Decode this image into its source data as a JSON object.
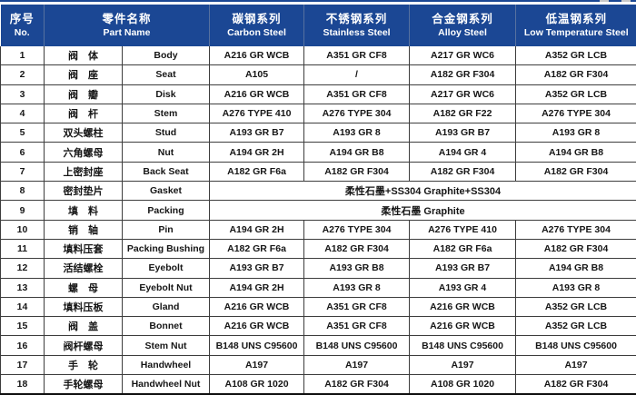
{
  "table": {
    "columns": [
      {
        "zh": "序号",
        "en": "No."
      },
      {
        "zh": "零件名称",
        "en": "Part Name"
      },
      {
        "zh": "碳钢系列",
        "en": "Carbon Steel"
      },
      {
        "zh": "不锈钢系列",
        "en": "Stainless Steel"
      },
      {
        "zh": "合金钢系列",
        "en": "Alloy Steel"
      },
      {
        "zh": "低温钢系列",
        "en": "Low Temperature Steel"
      }
    ],
    "rows": [
      {
        "no": "1",
        "part_zh": "阀　体",
        "part_en": "Body",
        "materials": [
          "A216 GR WCB",
          "A351 GR CF8",
          "A217 GR WC6",
          "A352 GR LCB"
        ]
      },
      {
        "no": "2",
        "part_zh": "阀　座",
        "part_en": "Seat",
        "materials": [
          "A105",
          "/",
          "A182 GR F304",
          "A182 GR F304"
        ]
      },
      {
        "no": "3",
        "part_zh": "阀　瓣",
        "part_en": "Disk",
        "materials": [
          "A216 GR WCB",
          "A351 GR CF8",
          "A217 GR WC6",
          "A352 GR LCB"
        ]
      },
      {
        "no": "4",
        "part_zh": "阀　杆",
        "part_en": "Stem",
        "materials": [
          "A276 TYPE 410",
          "A276 TYPE 304",
          "A182 GR F22",
          "A276 TYPE 304"
        ]
      },
      {
        "no": "5",
        "part_zh": "双头螺柱",
        "part_en": "Stud",
        "materials": [
          "A193 GR B7",
          "A193 GR 8",
          "A193 GR B7",
          "A193 GR 8"
        ]
      },
      {
        "no": "6",
        "part_zh": "六角螺母",
        "part_en": "Nut",
        "materials": [
          "A194 GR 2H",
          "A194 GR B8",
          "A194 GR 4",
          "A194 GR B8"
        ]
      },
      {
        "no": "7",
        "part_zh": "上密封座",
        "part_en": "Back Seat",
        "materials": [
          "A182 GR F6a",
          "A182 GR F304",
          "A182 GR F304",
          "A182 GR F304"
        ]
      },
      {
        "no": "8",
        "part_zh": "密封垫片",
        "part_en": "Gasket",
        "merged": "柔性石墨+SS304 Graphite+SS304"
      },
      {
        "no": "9",
        "part_zh": "填　料",
        "part_en": "Packing",
        "merged": "柔性石墨 Graphite"
      },
      {
        "no": "10",
        "part_zh": "销　轴",
        "part_en": "Pin",
        "materials": [
          "A194 GR 2H",
          "A276 TYPE 304",
          "A276 TYPE 410",
          "A276 TYPE 304"
        ]
      },
      {
        "no": "11",
        "part_zh": "填料压套",
        "part_en": "Packing Bushing",
        "materials": [
          "A182 GR F6a",
          "A182 GR F304",
          "A182 GR F6a",
          "A182 GR F304"
        ]
      },
      {
        "no": "12",
        "part_zh": "活结螺栓",
        "part_en": "Eyebolt",
        "materials": [
          "A193 GR B7",
          "A193 GR B8",
          "A193 GR B7",
          "A194 GR B8"
        ]
      },
      {
        "no": "13",
        "part_zh": "螺　母",
        "part_en": "Eyebolt Nut",
        "materials": [
          "A194 GR 2H",
          "A193 GR 8",
          "A193 GR 4",
          "A193 GR 8"
        ]
      },
      {
        "no": "14",
        "part_zh": "填料压板",
        "part_en": "Gland",
        "materials": [
          "A216 GR WCB",
          "A351 GR CF8",
          "A216 GR WCB",
          "A352 GR LCB"
        ]
      },
      {
        "no": "15",
        "part_zh": "阀　盖",
        "part_en": "Bonnet",
        "materials": [
          "A216 GR WCB",
          "A351 GR CF8",
          "A216 GR WCB",
          "A352 GR LCB"
        ]
      },
      {
        "no": "16",
        "part_zh": "阀杆螺母",
        "part_en": "Stem Nut",
        "materials": [
          "B148 UNS C95600",
          "B148 UNS C95600",
          "B148 UNS C95600",
          "B148 UNS C95600"
        ]
      },
      {
        "no": "17",
        "part_zh": "手　轮",
        "part_en": "Handwheel",
        "materials": [
          "A197",
          "A197",
          "A197",
          "A197"
        ]
      },
      {
        "no": "18",
        "part_zh": "手轮螺母",
        "part_en": "Handwheel Nut",
        "materials": [
          "A108 GR 1020",
          "A182 GR F304",
          "A108 GR 1020",
          "A182 GR F304"
        ]
      }
    ]
  },
  "colors": {
    "header_bg": "#1b4794",
    "header_divider": "#56719f",
    "grid_line": "#3d3d3d",
    "body_text": "#161616"
  }
}
